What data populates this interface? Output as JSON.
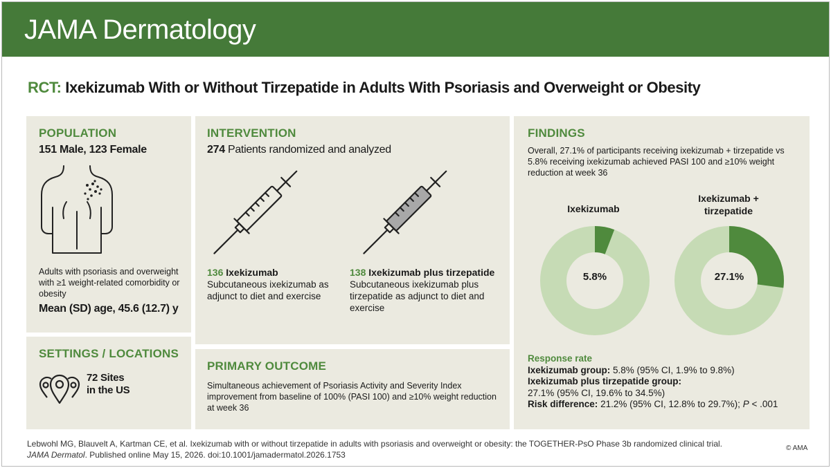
{
  "header": {
    "journal": "JAMA Dermatology"
  },
  "title": {
    "tag": "RCT:",
    "text": "Ixekizumab With or Without Tirzepatide in Adults With Psoriasis and Overweight or Obesity"
  },
  "population": {
    "heading": "POPULATION",
    "sex_split": "151 Male, 123 Female",
    "icon": "torso-psoriasis-icon",
    "description": "Adults with psoriasis and overweight with ≥1 weight-related comorbidity or obesity",
    "age": "Mean (SD) age, 45.6 (12.7) y"
  },
  "settings": {
    "heading": "SETTINGS / LOCATIONS",
    "icon": "map-pins-icon",
    "sites_line1": "72 Sites",
    "sites_line2": "in the US"
  },
  "intervention": {
    "heading": "INTERVENTION",
    "count": "274",
    "count_text": "Patients randomized and analyzed",
    "arms": [
      {
        "n": "136",
        "name": "Ixekizumab",
        "description": "Subcutaneous ixekizumab as adjunct to diet and exercise",
        "icon": "syringe-icon"
      },
      {
        "n": "138",
        "name": "Ixekizumab plus tirzepatide",
        "description": "Subcutaneous ixekizumab plus tirzepatide as adjunct to diet and exercise",
        "icon": "syringe-filled-icon"
      }
    ]
  },
  "primary_outcome": {
    "heading": "PRIMARY OUTCOME",
    "text": "Simultaneous achievement of Psoriasis Activity and Severity Index improvement from baseline of 100% (PASI 100) and ≥10% weight reduction at week 36"
  },
  "findings": {
    "heading": "FINDINGS",
    "intro": "Overall, 27.1% of participants receiving ixekizumab + tirzepatide vs 5.8% receiving ixekizumab achieved PASI 100 and ≥10% weight reduction at week 36",
    "groups": [
      {
        "label": "Ixekizumab",
        "pct_label": "5.8%",
        "value": 5.8
      },
      {
        "label": "Ixekizumab + tirzepatide",
        "pct_label": "27.1%",
        "value": 27.1
      }
    ],
    "colors": {
      "accent": "#4f8a3d",
      "track": "#c6dbb5"
    },
    "response_heading": "Response rate",
    "g1_label": "Ixekizumab group:",
    "g1_value": "5.8% (95% CI, 1.9% to 9.8%)",
    "g2_label": "Ixekizumab plus tirzepatide group:",
    "g2_value": "27.1% (95% CI, 19.6% to 34.5%)",
    "rd_label": "Risk difference:",
    "rd_value": "21.2% (95% CI, 12.8% to 29.7%);",
    "p_label": "P",
    "p_value": "< .001"
  },
  "citation": {
    "line1": "Lebwohl MG, Blauvelt A, Kartman CE, et al. Ixekizumab with or without tirzepatide in adults with psoriasis and overweight or obesity: the TOGETHER-PsO Phase 3b  randomized clinical trial.",
    "journal": "JAMA Dermatol",
    "line2": ". Published online May 15, 2026. doi:10.1001/jamadermatol.2026.1753",
    "copyright": "© AMA"
  }
}
